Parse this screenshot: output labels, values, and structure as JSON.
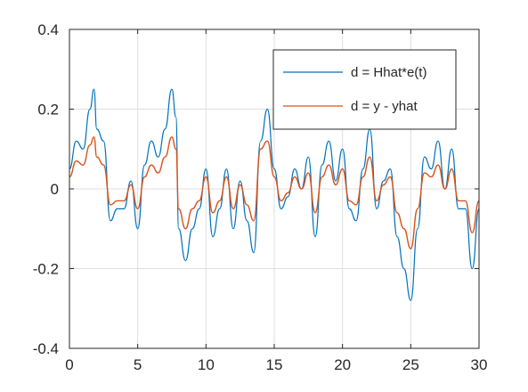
{
  "chart_data": {
    "type": "line",
    "title": "",
    "xlabel": "",
    "ylabel": "",
    "xlim": [
      0,
      30
    ],
    "ylim": [
      -0.4,
      0.4
    ],
    "xticks": [
      0,
      5,
      10,
      15,
      20,
      25,
      30
    ],
    "yticks": [
      -0.4,
      -0.2,
      0,
      0.2,
      0.4
    ],
    "xtick_labels": [
      "0",
      "5",
      "10",
      "15",
      "20",
      "25",
      "30"
    ],
    "ytick_labels": [
      "-0.4",
      "-0.2",
      "0",
      "0.2",
      "0.4"
    ],
    "grid": true,
    "legend_position": "top-right",
    "series": [
      {
        "name": "d = Hhat*e(t)",
        "color": "#0072BD",
        "x": [
          0,
          0.5,
          1,
          1.5,
          1.8,
          2,
          2.5,
          3,
          3.5,
          4,
          4.5,
          5,
          5.5,
          6,
          6.5,
          7,
          7.5,
          7.8,
          8,
          8.5,
          9,
          9.5,
          10,
          10.5,
          11,
          11.5,
          12,
          12.5,
          13,
          13.5,
          14,
          14.5,
          15,
          15.5,
          16,
          16.5,
          17,
          17.5,
          18,
          18.5,
          19,
          19.5,
          20,
          20.5,
          21,
          21.5,
          22,
          22.5,
          23,
          23.5,
          24,
          24.5,
          25,
          25.5,
          26,
          26.5,
          27,
          27.5,
          28,
          28.5,
          29,
          29.5,
          30
        ],
        "values": [
          0.05,
          0.12,
          0.1,
          0.2,
          0.25,
          0.15,
          0.12,
          -0.08,
          -0.05,
          -0.05,
          0.02,
          -0.1,
          0.06,
          0.12,
          0.08,
          0.15,
          0.25,
          0.18,
          -0.1,
          -0.18,
          -0.1,
          -0.05,
          0.05,
          -0.12,
          -0.05,
          0.05,
          -0.1,
          0.02,
          -0.08,
          -0.16,
          0.12,
          0.2,
          0.05,
          -0.05,
          -0.02,
          0.05,
          0.0,
          0.08,
          -0.12,
          0.06,
          0.12,
          0.02,
          0.1,
          -0.05,
          -0.08,
          0.05,
          0.15,
          -0.05,
          0.02,
          0.05,
          -0.12,
          -0.2,
          -0.28,
          -0.1,
          0.08,
          0.05,
          0.12,
          0.0,
          0.1,
          -0.05,
          -0.05,
          -0.2,
          -0.05
        ]
      },
      {
        "name": "d = y - yhat",
        "color": "#D95319",
        "x": [
          0,
          0.5,
          1,
          1.5,
          1.8,
          2,
          2.5,
          3,
          3.5,
          4,
          4.5,
          5,
          5.5,
          6,
          6.5,
          7,
          7.5,
          7.8,
          8,
          8.5,
          9,
          9.5,
          10,
          10.5,
          11,
          11.5,
          12,
          12.5,
          13,
          13.5,
          14,
          14.5,
          15,
          15.5,
          16,
          16.5,
          17,
          17.5,
          18,
          18.5,
          19,
          19.5,
          20,
          20.5,
          21,
          21.5,
          22,
          22.5,
          23,
          23.5,
          24,
          24.5,
          25,
          25.5,
          26,
          26.5,
          27,
          27.5,
          28,
          28.5,
          29,
          29.5,
          30
        ],
        "values": [
          0.03,
          0.07,
          0.06,
          0.11,
          0.13,
          0.08,
          0.06,
          -0.04,
          -0.03,
          -0.03,
          0.01,
          -0.05,
          0.03,
          0.06,
          0.04,
          0.08,
          0.13,
          0.1,
          -0.05,
          -0.1,
          -0.05,
          -0.03,
          0.03,
          -0.06,
          -0.03,
          0.03,
          -0.05,
          0.01,
          -0.04,
          -0.08,
          0.1,
          0.12,
          0.03,
          -0.03,
          -0.01,
          0.03,
          0.0,
          0.04,
          -0.06,
          0.03,
          0.06,
          0.01,
          0.05,
          -0.03,
          -0.04,
          0.03,
          0.08,
          -0.03,
          0.01,
          0.03,
          -0.06,
          -0.1,
          -0.15,
          -0.05,
          0.04,
          0.03,
          0.06,
          0.0,
          0.05,
          -0.03,
          -0.03,
          -0.11,
          -0.03
        ]
      }
    ]
  }
}
